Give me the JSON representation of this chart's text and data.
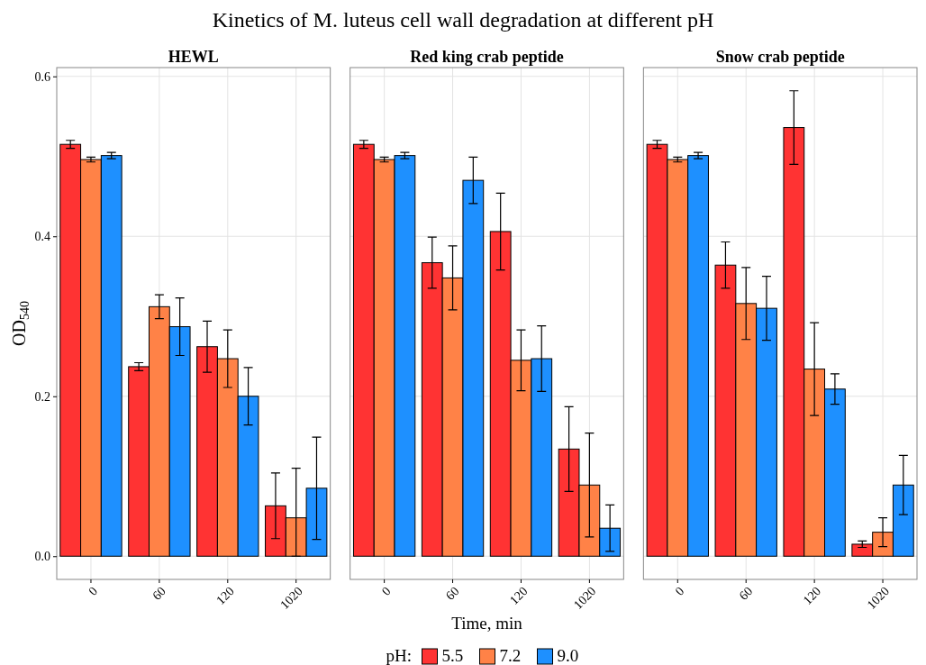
{
  "chart_data": [
    {
      "type": "bar",
      "title": "Kinetics of M. luteus cell wall degradation at different pH",
      "subtitle": "HEWL",
      "ylabel": "OD$_{540}$",
      "categories": [
        "0",
        "60",
        "120",
        "1020"
      ],
      "ylim": [
        -0.029,
        0.611
      ],
      "yticks": [
        {
          "value": 0,
          "label": "0.0"
        },
        {
          "value": 0.2,
          "label": "0.2"
        },
        {
          "value": 0.4,
          "label": "0.4"
        },
        {
          "value": 0.6,
          "label": "0.6"
        }
      ],
      "grid": true,
      "legend": false,
      "series": [
        {
          "color": "#ff3333",
          "values": [
            0.515,
            0.237,
            0.262,
            0.063
          ],
          "errors": [
            0.005,
            0.005,
            0.032,
            0.041
          ]
        },
        {
          "color": "#ff8247",
          "values": [
            0.496,
            0.312,
            0.247,
            0.048
          ],
          "errors": [
            0.003,
            0.015,
            0.036,
            [
              0,
              0.11
            ]
          ]
        },
        {
          "color": "#1e90ff",
          "values": [
            0.501,
            0.287,
            0.2,
            0.085
          ],
          "errors": [
            0.004,
            0.036,
            0.036,
            0.064
          ]
        }
      ]
    },
    {
      "type": "bar",
      "subtitle": "Red king crab peptide",
      "xlabel": "Time, min",
      "legend_title": "pH:",
      "categories": [
        "0",
        "60",
        "120",
        "1020"
      ],
      "ylim": [
        -0.029,
        0.611
      ],
      "yticks": [
        0,
        0.2,
        0.4,
        0.6
      ],
      "tick_labels": "x",
      "grid": true,
      "legend": "bottom",
      "series": [
        {
          "name": "5.5",
          "color": "#ff3333",
          "values": [
            0.515,
            0.367,
            0.406,
            0.134
          ],
          "errors": [
            0.005,
            0.032,
            0.048,
            0.053
          ]
        },
        {
          "name": "7.2",
          "color": "#ff8247",
          "values": [
            0.496,
            0.348,
            0.245,
            0.089
          ],
          "errors": [
            0.003,
            0.04,
            0.038,
            0.065
          ]
        },
        {
          "name": "9.0",
          "color": "#1e90ff",
          "values": [
            0.501,
            0.47,
            0.247,
            0.035
          ],
          "errors": [
            0.004,
            0.029,
            0.041,
            0.029
          ]
        }
      ]
    },
    {
      "type": "bar",
      "subtitle": "Snow crab peptide",
      "categories": [
        "0",
        "60",
        "120",
        "1020"
      ],
      "ylim": [
        -0.029,
        0.611
      ],
      "yticks": [
        0,
        0.2,
        0.4,
        0.6
      ],
      "tick_labels": "x",
      "grid": true,
      "legend": false,
      "series": [
        {
          "color": "#ff3333",
          "values": [
            0.515,
            0.364,
            0.536,
            0.015
          ],
          "errors": [
            0.005,
            0.029,
            0.046,
            0.004
          ]
        },
        {
          "color": "#ff8247",
          "values": [
            0.496,
            0.316,
            0.234,
            0.03
          ],
          "errors": [
            0.003,
            0.045,
            0.058,
            0.018
          ]
        },
        {
          "color": "#1e90ff",
          "values": [
            0.501,
            0.31,
            0.209,
            0.089
          ],
          "errors": [
            0.004,
            0.04,
            0.019,
            0.037
          ]
        }
      ]
    }
  ]
}
